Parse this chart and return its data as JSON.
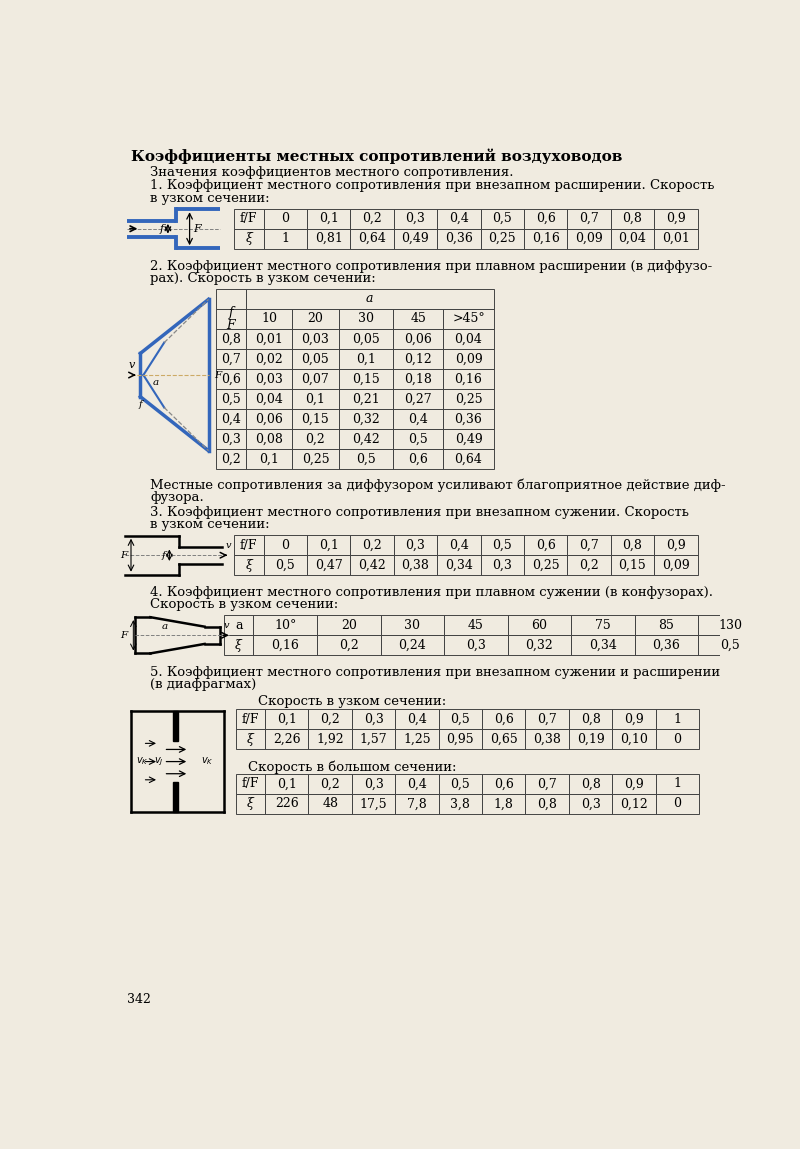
{
  "page_bg": "#f0ebe0",
  "title": "Коэффициенты местных сопротивлений воздуховодов",
  "subtitle": "Значения коэффициентов местного сопротивления.",
  "section1_text": "1. Коэффициент местного сопротивления при внезапном расширении. Скорость\nв узком сечении:",
  "table1_header": [
    "f/F",
    "0",
    "0,1",
    "0,2",
    "0,3",
    "0,4",
    "0,5",
    "0,6",
    "0,7",
    "0,8",
    "0,9"
  ],
  "table1_row": [
    "ξ",
    "1",
    "0,81",
    "0,64",
    "0,49",
    "0,36",
    "0,25",
    "0,16",
    "0,09",
    "0,04",
    "0,01"
  ],
  "table2_cols": [
    "f/F",
    "10",
    "20",
    "30",
    "45",
    ">45°"
  ],
  "table2_rows": [
    [
      "0,8",
      "0,01",
      "0,03",
      "0,05",
      "0,06",
      "0,04"
    ],
    [
      "0,7",
      "0,02",
      "0,05",
      "0,1",
      "0,12",
      "0,09"
    ],
    [
      "0,6",
      "0,03",
      "0,07",
      "0,15",
      "0,18",
      "0,16"
    ],
    [
      "0,5",
      "0,04",
      "0,1",
      "0,21",
      "0,27",
      "0,25"
    ],
    [
      "0,4",
      "0,06",
      "0,15",
      "0,32",
      "0,4",
      "0,36"
    ],
    [
      "0,3",
      "0,08",
      "0,2",
      "0,42",
      "0,5",
      "0,49"
    ],
    [
      "0,2",
      "0,1",
      "0,25",
      "0,5",
      "0,6",
      "0,64"
    ]
  ],
  "section2_note1": "Местные сопротивления за диффузором усиливают благоприятное действие диф-",
  "section2_note2": "фузора.",
  "section3_header": [
    "f/F",
    "0",
    "0,1",
    "0,2",
    "0,3",
    "0,4",
    "0,5",
    "0,6",
    "0,7",
    "0,8",
    "0,9"
  ],
  "section3_row": [
    "ξ",
    "0,5",
    "0,47",
    "0,42",
    "0,38",
    "0,34",
    "0,3",
    "0,25",
    "0,2",
    "0,15",
    "0,09"
  ],
  "table4_header": [
    "a",
    "10°",
    "20",
    "30",
    "45",
    "60",
    "75",
    "85",
    "130"
  ],
  "table4_row": [
    "ξ",
    "0,16",
    "0,2",
    "0,24",
    "0,3",
    "0,32",
    "0,34",
    "0,36",
    "0,5"
  ],
  "table5a_header": [
    "f/F",
    "0,1",
    "0,2",
    "0,3",
    "0,4",
    "0,5",
    "0,6",
    "0,7",
    "0,8",
    "0,9",
    "1"
  ],
  "table5a_row": [
    "ξ",
    "2,26",
    "1,92",
    "1,57",
    "1,25",
    "0,95",
    "0,65",
    "0,38",
    "0,19",
    "0,10",
    "0"
  ],
  "table5b_header": [
    "f/F",
    "0,1",
    "0,2",
    "0,3",
    "0,4",
    "0,5",
    "0,6",
    "0,7",
    "0,8",
    "0,9",
    "1"
  ],
  "table5b_row": [
    "ξ",
    "226",
    "48",
    "17,5",
    "7,8",
    "3,8",
    "1,8",
    "0,8",
    "0,3",
    "0,12",
    "0"
  ],
  "page_number": "342"
}
